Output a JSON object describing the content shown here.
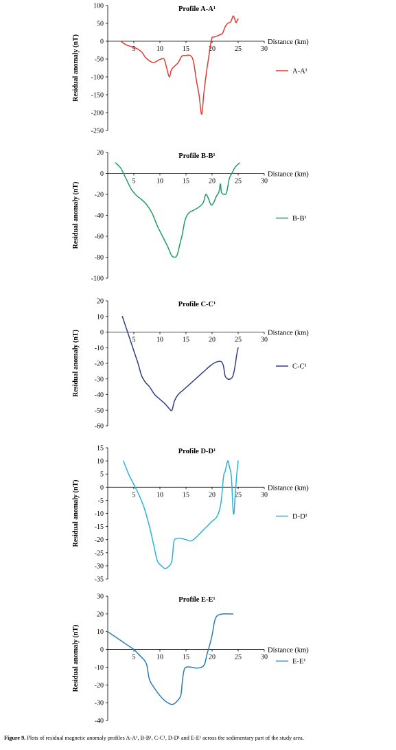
{
  "chart_data": [
    {
      "type": "line",
      "title": "Profile A-A¹",
      "xlabel": "Distance (km)",
      "ylabel": "Residual anomaly (nT)",
      "xlim": [
        0,
        30
      ],
      "ylim": [
        -250,
        100
      ],
      "xticks": [
        5,
        10,
        15,
        20,
        25,
        30
      ],
      "yticks": [
        100,
        50,
        0,
        -50,
        -100,
        -150,
        -200,
        -250
      ],
      "legend": "right",
      "series": [
        {
          "name": "A-A¹",
          "color": "#e03a33",
          "x": [
            2.5,
            3.5,
            4.5,
            5.5,
            6.5,
            7.2,
            8,
            8.8,
            9.5,
            10.2,
            10.8,
            11.3,
            11.8,
            12.2,
            12.8,
            13.5,
            14.2,
            15,
            15.8,
            16.4,
            17,
            17.5,
            18,
            18.4,
            18.8,
            19.3,
            19.7,
            20,
            20.5,
            21,
            21.5,
            22,
            22.5,
            23,
            23.6,
            24,
            24.2,
            24.4,
            24.6,
            24.8,
            25
          ],
          "y": [
            0,
            -10,
            -15,
            -20,
            -30,
            -45,
            -55,
            -60,
            -55,
            -50,
            -50,
            -75,
            -100,
            -80,
            -70,
            -60,
            -42,
            -40,
            -40,
            -55,
            -110,
            -150,
            -205,
            -150,
            -100,
            -50,
            -10,
            10,
            12,
            15,
            18,
            22,
            40,
            50,
            55,
            70,
            68,
            60,
            52,
            58,
            62
          ]
        }
      ]
    },
    {
      "type": "line",
      "title": "Profile B-B¹",
      "xlabel": "Distance (km)",
      "ylabel": "Residual anomaly (nT)",
      "xlim": [
        0,
        30
      ],
      "ylim": [
        -100,
        20
      ],
      "xticks": [
        5,
        10,
        15,
        20,
        25,
        30
      ],
      "yticks": [
        20,
        0,
        -20,
        -40,
        -60,
        -80,
        -100
      ],
      "legend": "right",
      "series": [
        {
          "name": "B-B¹",
          "color": "#1e9e5c",
          "x": [
            1.5,
            2.5,
            3.5,
            4.5,
            5.5,
            6.5,
            7.5,
            8.5,
            9.5,
            10.5,
            11.5,
            12.2,
            12.8,
            13.3,
            13.8,
            14.3,
            14.8,
            15.5,
            16.5,
            17.5,
            18.3,
            18.8,
            19.3,
            19.8,
            20.3,
            20.8,
            21.3,
            21.6,
            21.8,
            22.3,
            22.8,
            23.3,
            23.8,
            24.3,
            24.8,
            25.3
          ],
          "y": [
            10,
            5,
            -5,
            -15,
            -21,
            -25,
            -30,
            -38,
            -50,
            -60,
            -70,
            -78,
            -80,
            -78,
            -68,
            -58,
            -45,
            -38,
            -35,
            -32,
            -28,
            -20,
            -24,
            -30,
            -28,
            -22,
            -18,
            -10,
            -18,
            -20,
            -18,
            -5,
            0,
            5,
            8,
            10
          ]
        }
      ]
    },
    {
      "type": "line",
      "title": "Profile C-C¹",
      "xlabel": "Distance (km)",
      "ylabel": "Residual anomaly (nT)",
      "xlim": [
        0,
        30
      ],
      "ylim": [
        -60,
        20
      ],
      "xticks": [
        5,
        10,
        15,
        20,
        25,
        30
      ],
      "yticks": [
        20,
        10,
        0,
        -10,
        -20,
        -30,
        -40,
        -50,
        -60
      ],
      "legend": "right",
      "series": [
        {
          "name": "C-C¹",
          "color": "#2f3e7e",
          "x": [
            2.8,
            3.5,
            4.3,
            5,
            5.8,
            6.5,
            7.2,
            8,
            9,
            10,
            11,
            11.8,
            12.3,
            12.8,
            13.5,
            14.5,
            15.5,
            16.5,
            17.5,
            18.5,
            19.5,
            20.3,
            21,
            21.8,
            22.2,
            22.5,
            23,
            23.5,
            24,
            24.4,
            24.7,
            25
          ],
          "y": [
            10,
            3,
            -5,
            -12,
            -20,
            -28,
            -32,
            -35,
            -40,
            -43,
            -46,
            -49,
            -50,
            -44,
            -40,
            -37,
            -34,
            -31,
            -28,
            -25,
            -22,
            -20,
            -19,
            -19,
            -22,
            -28,
            -30,
            -30,
            -28,
            -22,
            -15,
            -10
          ]
        }
      ]
    },
    {
      "type": "line",
      "title": "Profile D-D¹",
      "xlabel": "Distance (km)",
      "ylabel": "Residual anomaly (nT)",
      "xlim": [
        0,
        30
      ],
      "ylim": [
        -35,
        15
      ],
      "xticks": [
        5,
        10,
        15,
        20,
        25,
        30
      ],
      "yticks": [
        15,
        10,
        5,
        0,
        -5,
        -10,
        -15,
        -20,
        -25,
        -30,
        -35
      ],
      "legend": "right",
      "series": [
        {
          "name": "D-D¹",
          "color": "#29b2dc",
          "x": [
            3,
            4,
            5,
            6,
            7,
            8,
            8.8,
            9.5,
            10.3,
            11,
            11.8,
            12.3,
            12.6,
            12.8,
            13.3,
            14,
            15,
            16,
            17,
            18,
            19,
            20,
            21,
            21.7,
            22.2,
            22.5,
            23,
            23.3,
            23.7,
            24,
            24.2,
            24.4,
            24.7,
            25
          ],
          "y": [
            10,
            5,
            1,
            -3,
            -8,
            -15,
            -22,
            -28,
            -30,
            -31,
            -30,
            -28,
            -22,
            -20,
            -19.5,
            -19.5,
            -20,
            -20.5,
            -19,
            -17,
            -15,
            -13,
            -11,
            -6,
            4,
            6,
            10,
            8,
            4,
            -8,
            -10,
            -4,
            4,
            10
          ]
        }
      ]
    },
    {
      "type": "line",
      "title": "Profile E-E¹",
      "xlabel": "Distance (km)",
      "ylabel": "Residual anomaly (nT)",
      "xlim": [
        0,
        30
      ],
      "ylim": [
        -40,
        30
      ],
      "xticks": [
        5,
        10,
        15,
        20,
        25,
        30
      ],
      "yticks": [
        30,
        20,
        10,
        0,
        -10,
        -20,
        -30,
        -40
      ],
      "legend": "right",
      "series": [
        {
          "name": "E-E¹",
          "color": "#2a7ab5",
          "x": [
            0,
            1,
            2,
            3,
            4,
            5,
            6,
            7,
            7.5,
            8,
            9,
            10,
            11,
            11.8,
            12.3,
            12.8,
            13.3,
            14,
            14.3,
            14.6,
            15,
            16,
            17,
            18,
            18.6,
            19,
            19.5,
            20,
            20.5,
            21,
            22,
            23,
            24
          ],
          "y": [
            10,
            8,
            6,
            4,
            2,
            0,
            -3,
            -6,
            -9,
            -17,
            -22,
            -26,
            -29,
            -30.5,
            -31,
            -30.5,
            -29,
            -26,
            -18,
            -12,
            -10,
            -10,
            -10.5,
            -10,
            -8,
            -3,
            2,
            8,
            16,
            19,
            20,
            20,
            20
          ]
        }
      ]
    }
  ],
  "caption": {
    "label": "Figure 9.",
    "text": " Plots of residual magnetic anomaly profiles A-A¹, B-B¹, C-C¹, D-D¹ and E-E¹ across the sedimentary part of the study area."
  }
}
